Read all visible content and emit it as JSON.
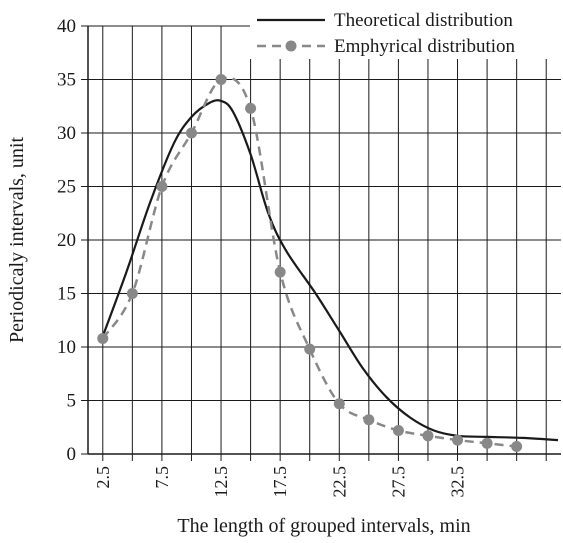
{
  "chart_data": {
    "type": "line",
    "xlabel": "The length of grouped intervals, min",
    "ylabel": "Periodicaly intervals, unit",
    "ylim": [
      0,
      40
    ],
    "xlim": [
      1.25,
      41.25
    ],
    "x_tick_values": [
      2.5,
      7.5,
      12.5,
      17.5,
      22.5,
      27.5,
      32.5
    ],
    "x_tick_labels": [
      "2.5",
      "7.5",
      "12.5",
      "17.5",
      "22.5",
      "27.5",
      "32.5"
    ],
    "y_tick_values": [
      0,
      5,
      10,
      15,
      20,
      25,
      30,
      35,
      40
    ],
    "y_tick_labels": [
      "0",
      "5",
      "10",
      "15",
      "20",
      "25",
      "30",
      "35",
      "40"
    ],
    "grid": true,
    "legend_position": "top-right",
    "series": [
      {
        "name": "Theoretical distribution",
        "style": "solid",
        "color": "#1a1a1a",
        "x": [
          2.5,
          4.5,
          6.5,
          8.5,
          10.0,
          11.5,
          12.5,
          13.5,
          15.0,
          16.5,
          18.0,
          20.5,
          22.5,
          24.5,
          26.5,
          28.5,
          30.5,
          32.5,
          35.0,
          38.0,
          41.0
        ],
        "values": [
          11.0,
          17.0,
          23.5,
          29.0,
          31.5,
          32.8,
          33.0,
          32.0,
          28.0,
          22.5,
          19.0,
          15.0,
          11.5,
          8.0,
          5.3,
          3.4,
          2.2,
          1.7,
          1.6,
          1.5,
          1.3
        ]
      },
      {
        "name": "Emphyrical distribution",
        "style": "dashed",
        "color": "#888888",
        "marker": "circle",
        "x": [
          2.5,
          5.0,
          7.5,
          10.0,
          12.5,
          15.0,
          17.5,
          20.0,
          22.5,
          25.0,
          27.5,
          30.0,
          32.5,
          35.0,
          37.5
        ],
        "values": [
          10.8,
          15.0,
          25.0,
          30.0,
          35.0,
          32.3,
          17.0,
          9.8,
          4.7,
          3.2,
          2.2,
          1.7,
          1.3,
          1.0,
          0.7
        ]
      }
    ]
  }
}
